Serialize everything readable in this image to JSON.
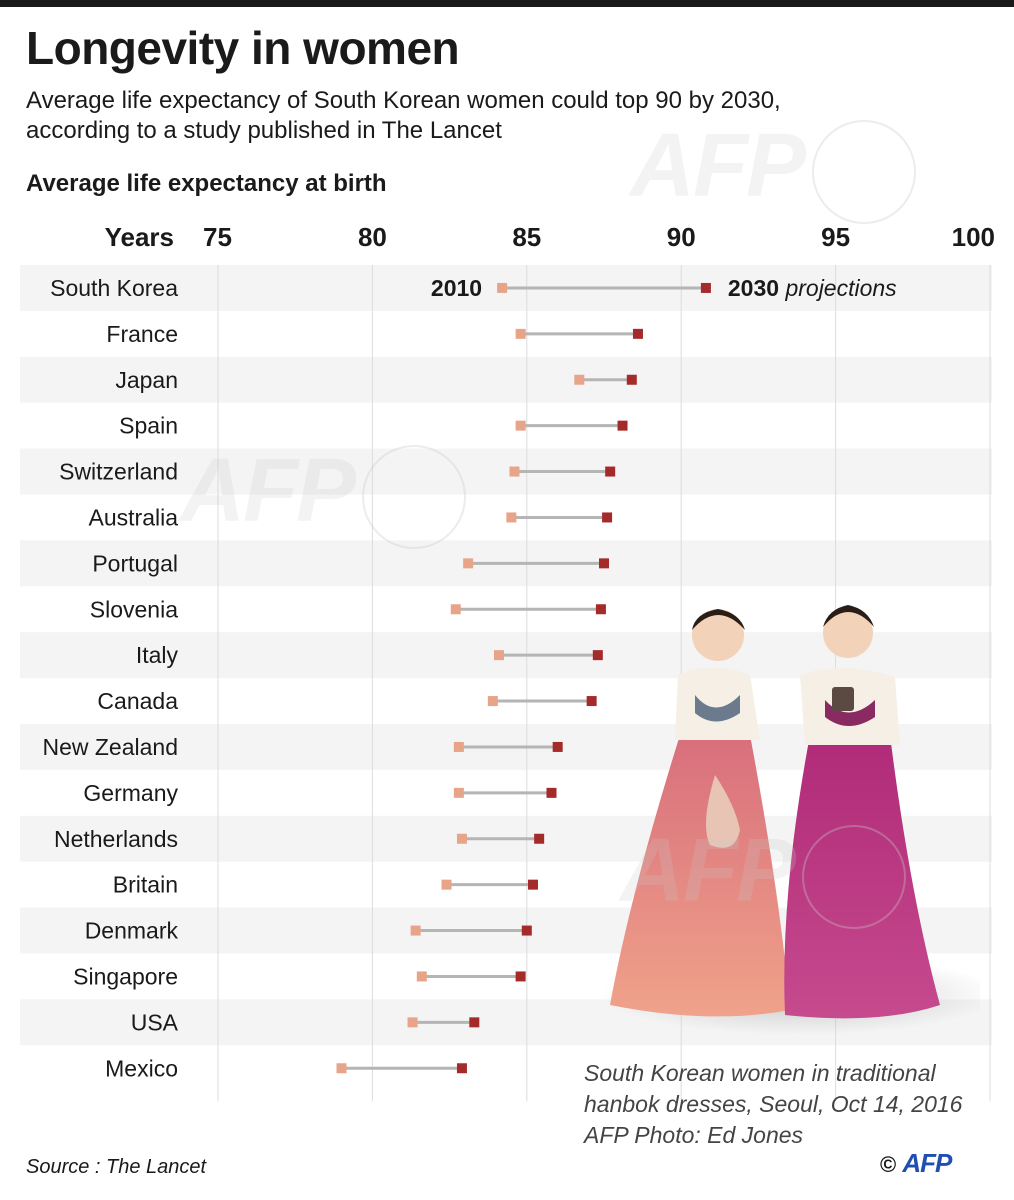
{
  "header": {
    "title": "Longevity in women",
    "subtitle_line1": "Average life expectancy of South Korean women could top 90 by 2030,",
    "subtitle_line2": "according to a study published in The Lancet"
  },
  "chart_data": {
    "type": "dumbbell",
    "title": "Average life expectancy at birth",
    "axis_label": "Years",
    "xlim": [
      75,
      100
    ],
    "ticks": [
      75,
      80,
      85,
      90,
      95,
      100
    ],
    "series_labels": {
      "start_year": "2010",
      "end_year": "2030",
      "end_suffix": "projections"
    },
    "colors": {
      "start": "#e8a488",
      "end": "#a52a2a",
      "stripe": "#f4f4f4",
      "grid": "#dcdcdc"
    },
    "countries": [
      {
        "name": "South Korea",
        "v2010": 84.2,
        "v2030": 90.8
      },
      {
        "name": "France",
        "v2010": 84.8,
        "v2030": 88.6
      },
      {
        "name": "Japan",
        "v2010": 86.7,
        "v2030": 88.4
      },
      {
        "name": "Spain",
        "v2010": 84.8,
        "v2030": 88.1
      },
      {
        "name": "Switzerland",
        "v2010": 84.6,
        "v2030": 87.7
      },
      {
        "name": "Australia",
        "v2010": 84.5,
        "v2030": 87.6
      },
      {
        "name": "Portugal",
        "v2010": 83.1,
        "v2030": 87.5
      },
      {
        "name": "Slovenia",
        "v2010": 82.7,
        "v2030": 87.4
      },
      {
        "name": "Italy",
        "v2010": 84.1,
        "v2030": 87.3
      },
      {
        "name": "Canada",
        "v2010": 83.9,
        "v2030": 87.1
      },
      {
        "name": "New Zealand",
        "v2010": 82.8,
        "v2030": 86.0
      },
      {
        "name": "Germany",
        "v2010": 82.8,
        "v2030": 85.8
      },
      {
        "name": "Netherlands",
        "v2010": 82.9,
        "v2030": 85.4
      },
      {
        "name": "Britain",
        "v2010": 82.4,
        "v2030": 85.2
      },
      {
        "name": "Denmark",
        "v2010": 81.4,
        "v2030": 85.0
      },
      {
        "name": "Singapore",
        "v2010": 81.6,
        "v2030": 84.8
      },
      {
        "name": "USA",
        "v2010": 81.3,
        "v2030": 83.3
      },
      {
        "name": "Mexico",
        "v2010": 79.0,
        "v2030": 82.9
      }
    ]
  },
  "photo": {
    "caption_line1": "South Korean women in traditional",
    "caption_line2": "hanbok dresses, Seoul, Oct 14, 2016",
    "caption_line3": "AFP Photo: Ed Jones"
  },
  "footer": {
    "source": "Source : The Lancet",
    "copyright": "©",
    "logo_text": "AFP"
  },
  "watermark_text": "AFP"
}
